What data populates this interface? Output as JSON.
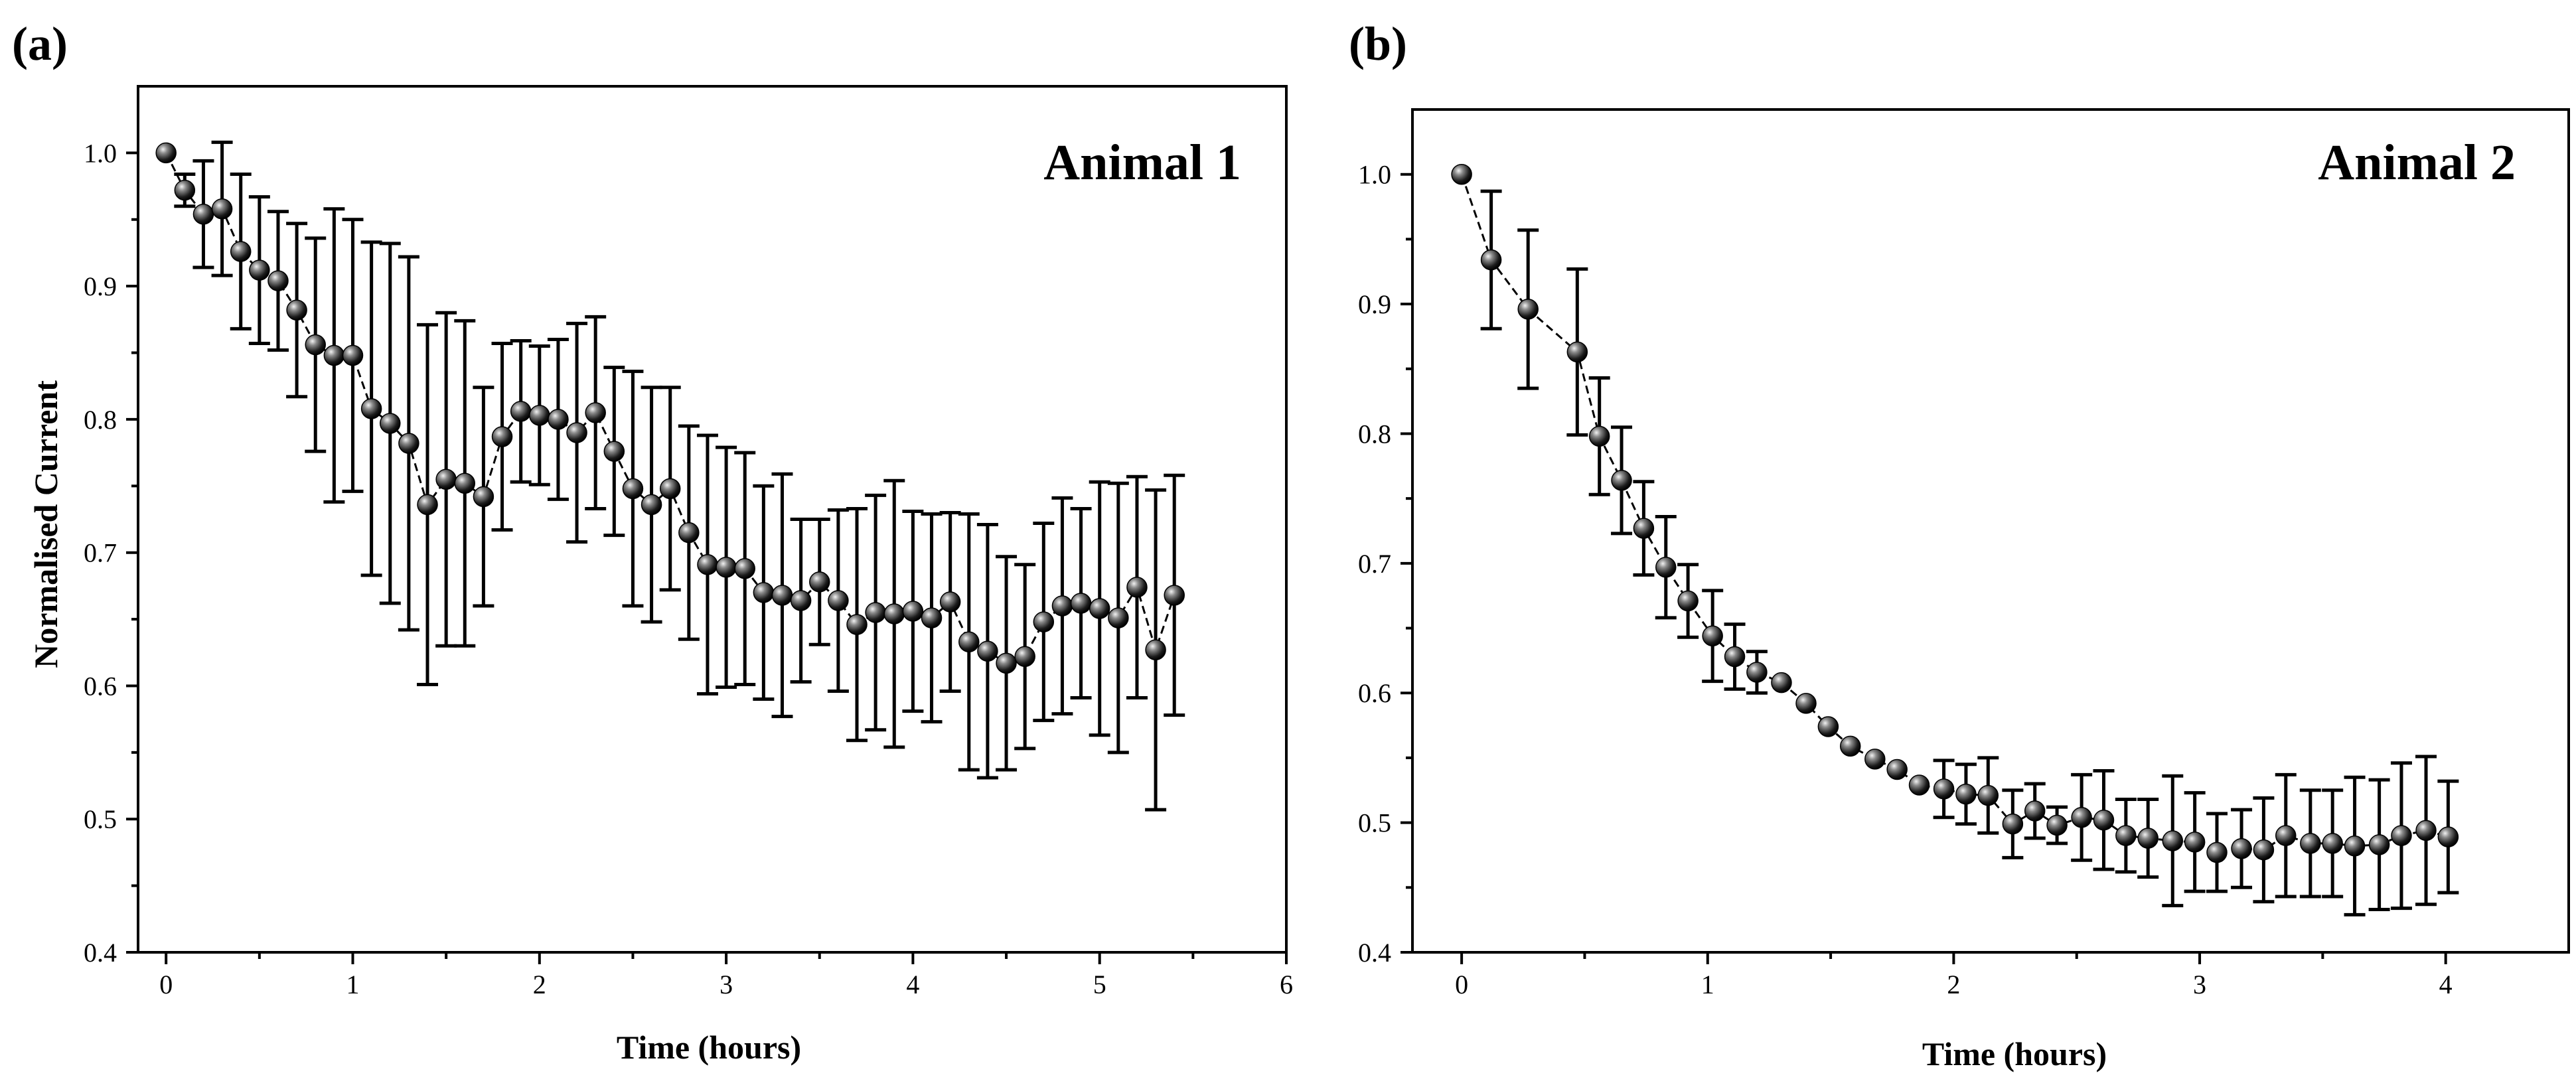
{
  "chart_data": [
    {
      "type": "line",
      "panel_label": "(a)",
      "annotation": "Animal 1",
      "xlabel": "Time (hours)",
      "ylabel": "Normalised Current",
      "xlim": [
        -0.15,
        6
      ],
      "ylim": [
        0.4,
        1.05
      ],
      "xticks": [
        "0",
        "1",
        "2",
        "3",
        "4",
        "5",
        "6"
      ],
      "yticks": [
        "0.4",
        "0.5",
        "0.6",
        "0.7",
        "0.8",
        "0.9",
        "1.0"
      ],
      "series": [
        {
          "name": "Animal 1",
          "marker": "sphere",
          "line": "dashed",
          "x": [
            0,
            0.1,
            0.2,
            0.3,
            0.4,
            0.5,
            0.6,
            0.7,
            0.8,
            0.9,
            1.0,
            1.1,
            1.2,
            1.3,
            1.4,
            1.5,
            1.6,
            1.7,
            1.8,
            1.9,
            2.0,
            2.1,
            2.2,
            2.3,
            2.4,
            2.5,
            2.6,
            2.7,
            2.8,
            2.9,
            3.0,
            3.1,
            3.2,
            3.3,
            3.4,
            3.5,
            3.6,
            3.7,
            3.8,
            3.9,
            4.0,
            4.1,
            4.2,
            4.3,
            4.4,
            4.5,
            4.6,
            4.7,
            4.8,
            4.9,
            5.0,
            5.1,
            5.2,
            5.3,
            5.4
          ],
          "y": [
            1.0,
            0.972,
            0.954,
            0.958,
            0.926,
            0.912,
            0.904,
            0.882,
            0.856,
            0.848,
            0.848,
            0.808,
            0.797,
            0.782,
            0.736,
            0.755,
            0.752,
            0.742,
            0.787,
            0.806,
            0.803,
            0.8,
            0.79,
            0.805,
            0.776,
            0.748,
            0.736,
            0.748,
            0.715,
            0.691,
            0.689,
            0.688,
            0.67,
            0.668,
            0.664,
            0.678,
            0.664,
            0.646,
            0.655,
            0.654,
            0.656,
            0.651,
            0.663,
            0.633,
            0.626,
            0.617,
            0.622,
            0.648,
            0.66,
            0.662,
            0.658,
            0.651,
            0.674,
            0.627,
            0.668
          ],
          "error": [
            0,
            0.012,
            0.04,
            0.05,
            0.058,
            0.055,
            0.052,
            0.065,
            0.08,
            0.11,
            0.102,
            0.125,
            0.135,
            0.14,
            0.135,
            0.125,
            0.122,
            0.082,
            0.07,
            0.053,
            0.052,
            0.06,
            0.082,
            0.072,
            0.063,
            0.088,
            0.088,
            0.076,
            0.08,
            0.097,
            0.09,
            0.087,
            0.08,
            0.091,
            0.061,
            0.047,
            0.068,
            0.087,
            0.088,
            0.1,
            0.075,
            0.078,
            0.067,
            0.096,
            0.095,
            0.08,
            0.069,
            0.074,
            0.081,
            0.071,
            0.095,
            0.101,
            0.083,
            0.12,
            0.09
          ]
        }
      ]
    },
    {
      "type": "line",
      "panel_label": "(b)",
      "annotation": "Animal 2",
      "xlabel": "Time (hours)",
      "ylabel": "",
      "xlim": [
        -0.2,
        4.5
      ],
      "ylim": [
        0.4,
        1.05
      ],
      "xticks": [
        "0",
        "1",
        "2",
        "3",
        "4"
      ],
      "yticks": [
        "0.4",
        "0.5",
        "0.6",
        "0.7",
        "0.8",
        "0.9",
        "1.0"
      ],
      "series": [
        {
          "name": "Animal 2",
          "marker": "sphere",
          "line": "dashed",
          "x": [
            0,
            0.12,
            0.27,
            0.47,
            0.56,
            0.65,
            0.74,
            0.83,
            0.92,
            1.02,
            1.11,
            1.2,
            1.3,
            1.4,
            1.49,
            1.58,
            1.68,
            1.77,
            1.86,
            1.96,
            2.05,
            2.14,
            2.24,
            2.33,
            2.42,
            2.52,
            2.61,
            2.7,
            2.79,
            2.89,
            2.98,
            3.07,
            3.17,
            3.26,
            3.35,
            3.45,
            3.54,
            3.63,
            3.73,
            3.82,
            3.92,
            4.01
          ],
          "y": [
            1.0,
            0.934,
            0.896,
            0.863,
            0.798,
            0.764,
            0.727,
            0.697,
            0.671,
            0.644,
            0.628,
            0.616,
            0.608,
            0.592,
            0.574,
            0.559,
            0.549,
            0.541,
            0.529,
            0.526,
            0.522,
            0.521,
            0.499,
            0.509,
            0.498,
            0.504,
            0.502,
            0.49,
            0.488,
            0.486,
            0.485,
            0.477,
            0.48,
            0.479,
            0.49,
            0.484,
            0.484,
            0.482,
            0.483,
            0.49,
            0.494,
            0.489
          ],
          "error": [
            0,
            0.053,
            0.061,
            0.064,
            0.045,
            0.041,
            0.036,
            0.039,
            0.028,
            0.035,
            0.025,
            0.016,
            0,
            0,
            0,
            0,
            0,
            0,
            0,
            0.022,
            0.023,
            0.029,
            0.026,
            0.021,
            0.014,
            0.033,
            0.038,
            0.028,
            0.03,
            0.05,
            0.038,
            0.03,
            0.03,
            0.04,
            0.047,
            0.041,
            0.041,
            0.053,
            0.05,
            0.056,
            0.057,
            0.043
          ]
        }
      ]
    }
  ]
}
